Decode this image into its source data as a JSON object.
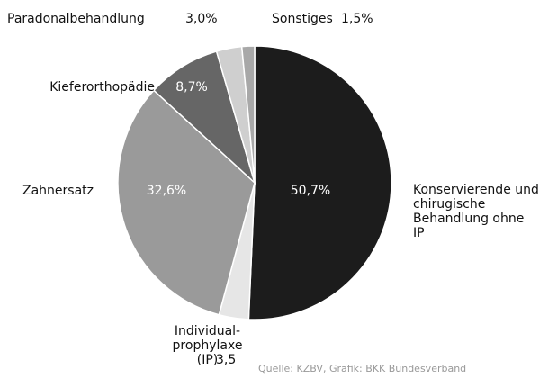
{
  "chart_data": {
    "type": "pie",
    "categories": [
      "Konservierende und chirugische Behandlung ohne IP",
      "Individual-prophylaxe (IP)",
      "Zahnersatz",
      "Kieferorthopädie",
      "Paradonalbehandlung",
      "Sonstiges"
    ],
    "values": [
      50.7,
      3.5,
      32.6,
      8.7,
      3.0,
      1.5
    ],
    "value_labels": [
      "50,7%",
      "3,5",
      "32,6%",
      "8,7%",
      "3,0%",
      "1,5%"
    ],
    "colors": [
      "#1c1c1c",
      "#e6e6e6",
      "#9a9a9a",
      "#666666",
      "#cfcfcf",
      "#a8a8a8"
    ],
    "source": "Quelle: KZBV, Grafik: BKK Bundesverband"
  }
}
